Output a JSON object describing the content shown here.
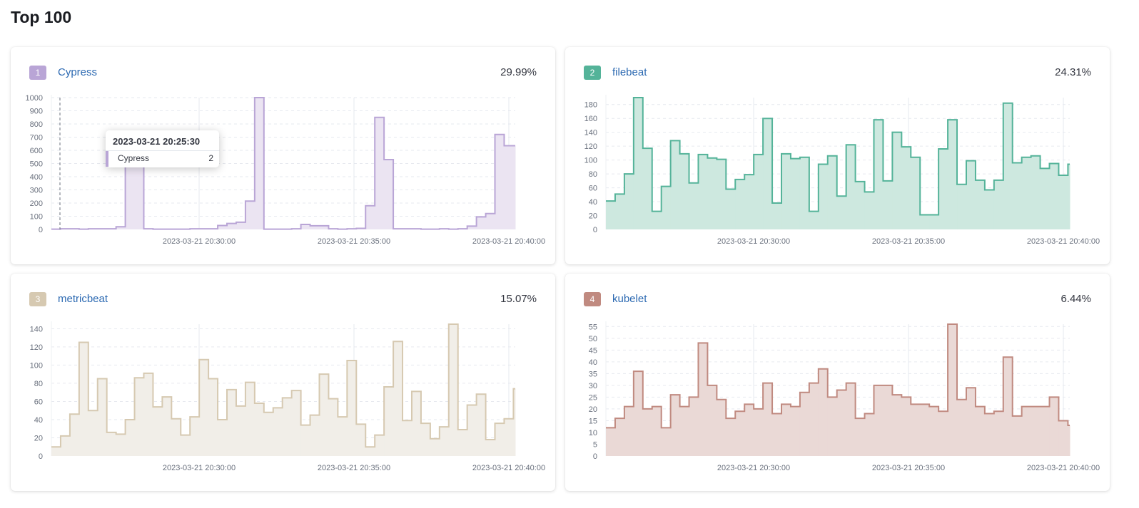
{
  "page": {
    "title": "Top 100"
  },
  "tooltip": {
    "time": "2023-03-21 20:25:30",
    "series": "Cypress",
    "value": "2"
  },
  "x_tick_labels": [
    "2023-03-21 20:30:00",
    "2023-03-21 20:35:00",
    "2023-03-21 20:40:00"
  ],
  "chart_data": [
    {
      "type": "area",
      "step": true,
      "rank": "1",
      "name": "Cypress",
      "percent": "29.99%",
      "color": "#b9a5d6",
      "fill": "#ebe4f2",
      "ylim": [
        0,
        1000
      ],
      "yticks": [
        0,
        100,
        200,
        300,
        400,
        500,
        600,
        700,
        800,
        900,
        1000
      ],
      "grid": true,
      "xticks": [
        "2023-03-21 20:30:00",
        "2023-03-21 20:35:00",
        "2023-03-21 20:40:00"
      ],
      "values": [
        2,
        5,
        5,
        2,
        5,
        5,
        5,
        20,
        650,
        650,
        5,
        2,
        2,
        2,
        2,
        5,
        5,
        5,
        30,
        45,
        55,
        215,
        1000,
        2,
        2,
        2,
        5,
        38,
        28,
        28,
        5,
        2,
        5,
        8,
        180,
        850,
        530,
        5,
        5,
        5,
        2,
        2,
        5,
        2,
        5,
        25,
        95,
        120,
        720,
        635,
        635
      ]
    },
    {
      "type": "area",
      "step": true,
      "rank": "2",
      "name": "filebeat",
      "percent": "24.31%",
      "color": "#54b399",
      "fill": "#cde8df",
      "ylim": [
        0,
        190
      ],
      "yticks": [
        0,
        20,
        40,
        60,
        80,
        100,
        120,
        140,
        160,
        180
      ],
      "grid": true,
      "xticks": [
        "2023-03-21 20:30:00",
        "2023-03-21 20:35:00",
        "2023-03-21 20:40:00"
      ],
      "values": [
        41,
        51,
        80,
        190,
        117,
        26,
        62,
        128,
        109,
        67,
        108,
        103,
        101,
        58,
        72,
        79,
        108,
        160,
        38,
        109,
        102,
        104,
        26,
        94,
        106,
        48,
        122,
        69,
        54,
        158,
        70,
        140,
        119,
        104,
        21,
        21,
        116,
        158,
        65,
        99,
        71,
        57,
        71,
        182,
        96,
        104,
        106,
        88,
        95,
        78,
        94
      ]
    },
    {
      "type": "area",
      "step": true,
      "rank": "3",
      "name": "metricbeat",
      "percent": "15.07%",
      "color": "#d6c9b1",
      "fill": "#f1eee8",
      "ylim": [
        0,
        145
      ],
      "yticks": [
        0,
        20,
        40,
        60,
        80,
        100,
        120,
        140
      ],
      "grid": true,
      "xticks": [
        "2023-03-21 20:30:00",
        "2023-03-21 20:35:00",
        "2023-03-21 20:40:00"
      ],
      "values": [
        10,
        22,
        46,
        125,
        50,
        85,
        26,
        24,
        40,
        86,
        91,
        54,
        65,
        41,
        23,
        43,
        106,
        85,
        40,
        73,
        55,
        81,
        58,
        48,
        53,
        64,
        72,
        34,
        45,
        90,
        63,
        43,
        105,
        35,
        10,
        23,
        76,
        126,
        39,
        71,
        36,
        19,
        32,
        145,
        29,
        56,
        68,
        18,
        36,
        41,
        74
      ]
    },
    {
      "type": "area",
      "step": true,
      "rank": "4",
      "name": "kubelet",
      "percent": "6.44%",
      "color": "#c08a80",
      "fill": "#ead9d6",
      "ylim": [
        0,
        56
      ],
      "yticks": [
        0,
        5,
        10,
        15,
        20,
        25,
        30,
        35,
        40,
        45,
        50,
        55
      ],
      "grid": true,
      "xticks": [
        "2023-03-21 20:30:00",
        "2023-03-21 20:35:00",
        "2023-03-21 20:40:00"
      ],
      "values": [
        12,
        16,
        21,
        36,
        20,
        21,
        12,
        26,
        21,
        25,
        48,
        30,
        24,
        16,
        19,
        22,
        20,
        31,
        18,
        22,
        21,
        27,
        31,
        37,
        25,
        28,
        31,
        16,
        18,
        30,
        30,
        26,
        25,
        22,
        22,
        21,
        19,
        56,
        24,
        29,
        21,
        18,
        19,
        42,
        17,
        21,
        21,
        21,
        25,
        15,
        13
      ]
    }
  ]
}
